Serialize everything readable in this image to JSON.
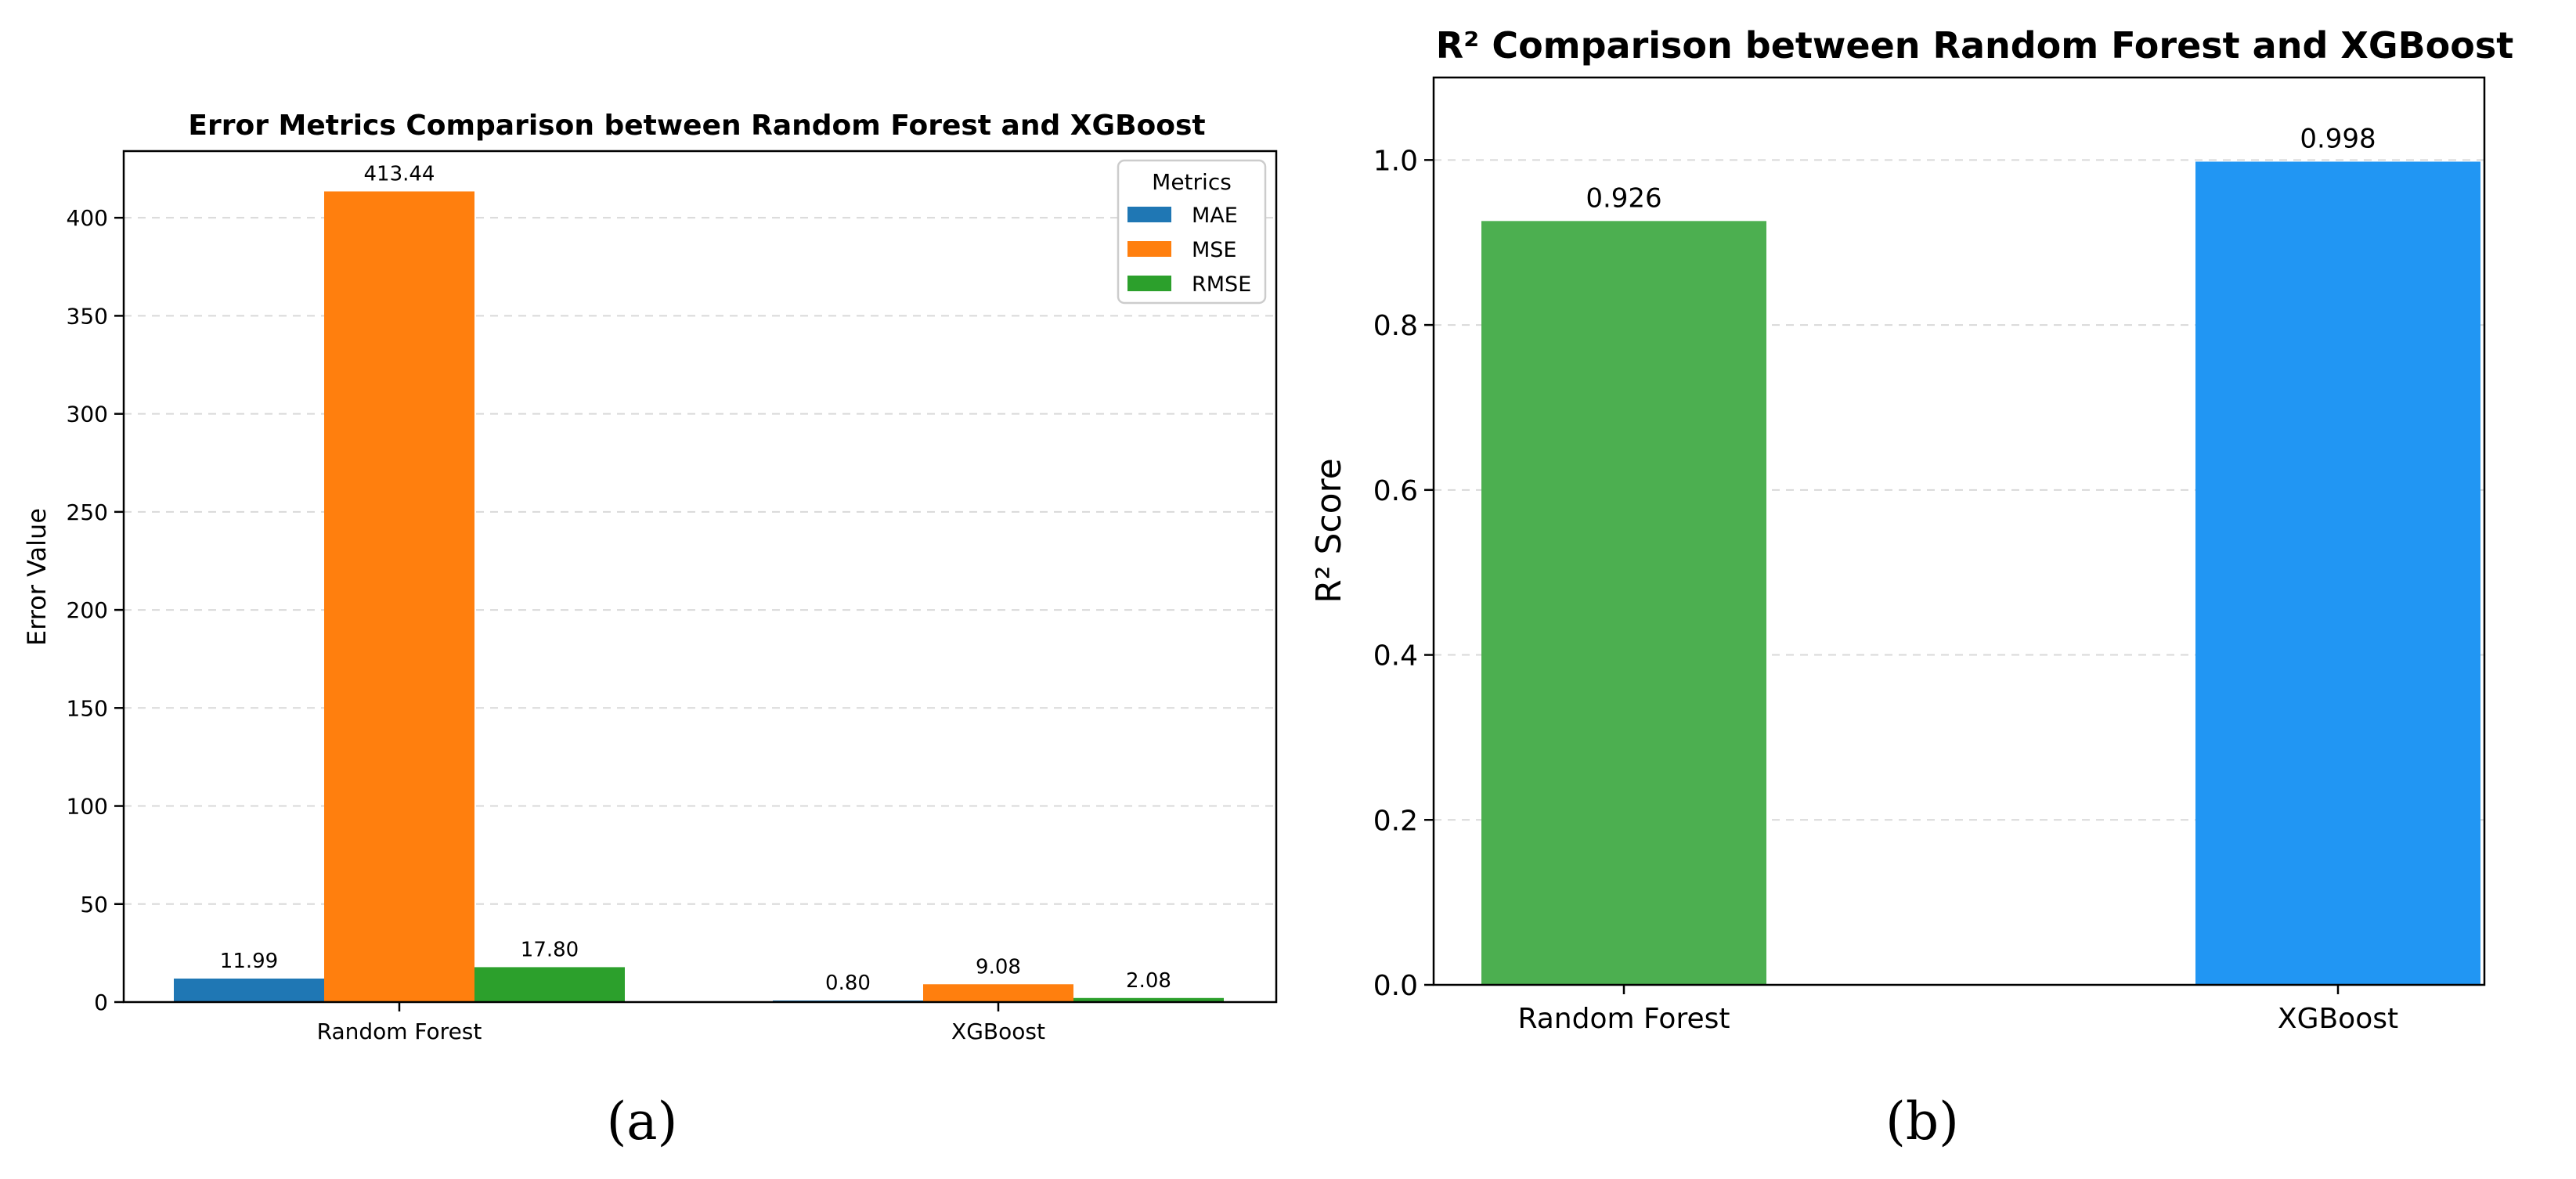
{
  "chart_data": [
    {
      "type": "bar",
      "title": "Error Metrics Comparison between Random Forest and XGBoost",
      "xlabel": "",
      "ylabel": "Error Value",
      "categories": [
        "Random Forest",
        "XGBoost"
      ],
      "series": [
        {
          "name": "MAE",
          "color": "#1f77b4",
          "values": [
            11.99,
            0.8
          ],
          "labels": [
            "11.99",
            "0.80"
          ]
        },
        {
          "name": "MSE",
          "color": "#ff7f0e",
          "values": [
            413.44,
            9.08
          ],
          "labels": [
            "413.44",
            "9.08"
          ]
        },
        {
          "name": "RMSE",
          "color": "#2ca02c",
          "values": [
            17.8,
            2.08
          ],
          "labels": [
            "17.80",
            "2.08"
          ]
        }
      ],
      "ylim": [
        0,
        434
      ],
      "yticks": [
        0,
        50,
        100,
        150,
        200,
        250,
        300,
        350,
        400
      ],
      "grid": true,
      "legend": {
        "title": "Metrics",
        "placement": "top-right"
      },
      "caption": "(a)"
    },
    {
      "type": "bar",
      "title": "R² Comparison between Random Forest and XGBoost",
      "xlabel": "",
      "ylabel": "R² Score",
      "categories": [
        "Random Forest",
        "XGBoost"
      ],
      "values": [
        0.926,
        0.998
      ],
      "labels": [
        "0.926",
        "0.998"
      ],
      "colors": [
        "#4caf50",
        "#2196f3"
      ],
      "ylim": [
        0,
        1.1
      ],
      "yticks": [
        "0.0",
        "0.2",
        "0.4",
        "0.6",
        "0.8",
        "1.0"
      ],
      "grid": true,
      "caption": "(b)"
    }
  ]
}
